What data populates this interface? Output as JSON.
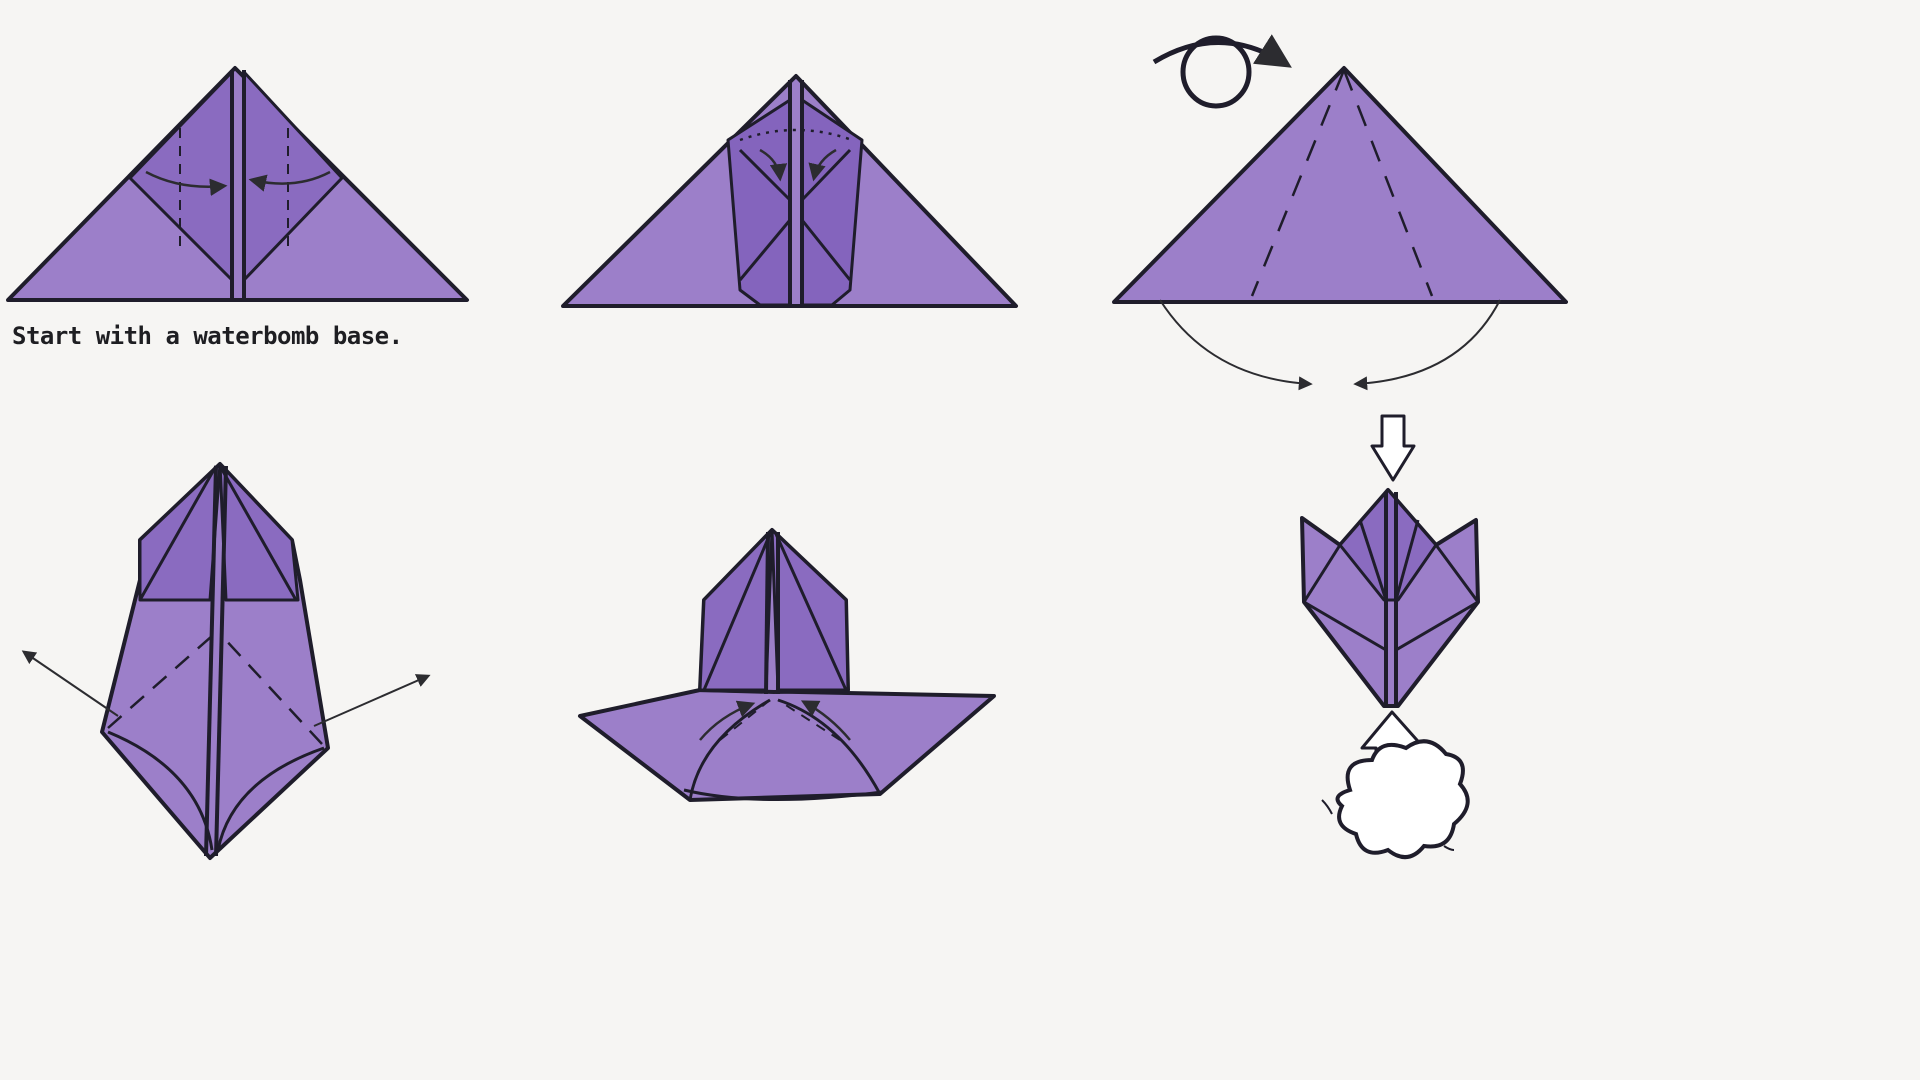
{
  "diagram": {
    "caption": "Start with a waterbomb base.",
    "colors": {
      "paper": "#9c7fc9",
      "paper_dark": "#7e5bb6",
      "paper_deep": "#6e48a8",
      "ink": "#1f1d2b",
      "arrow": "#3a3a3a",
      "background": "#f6f5f3"
    }
  }
}
